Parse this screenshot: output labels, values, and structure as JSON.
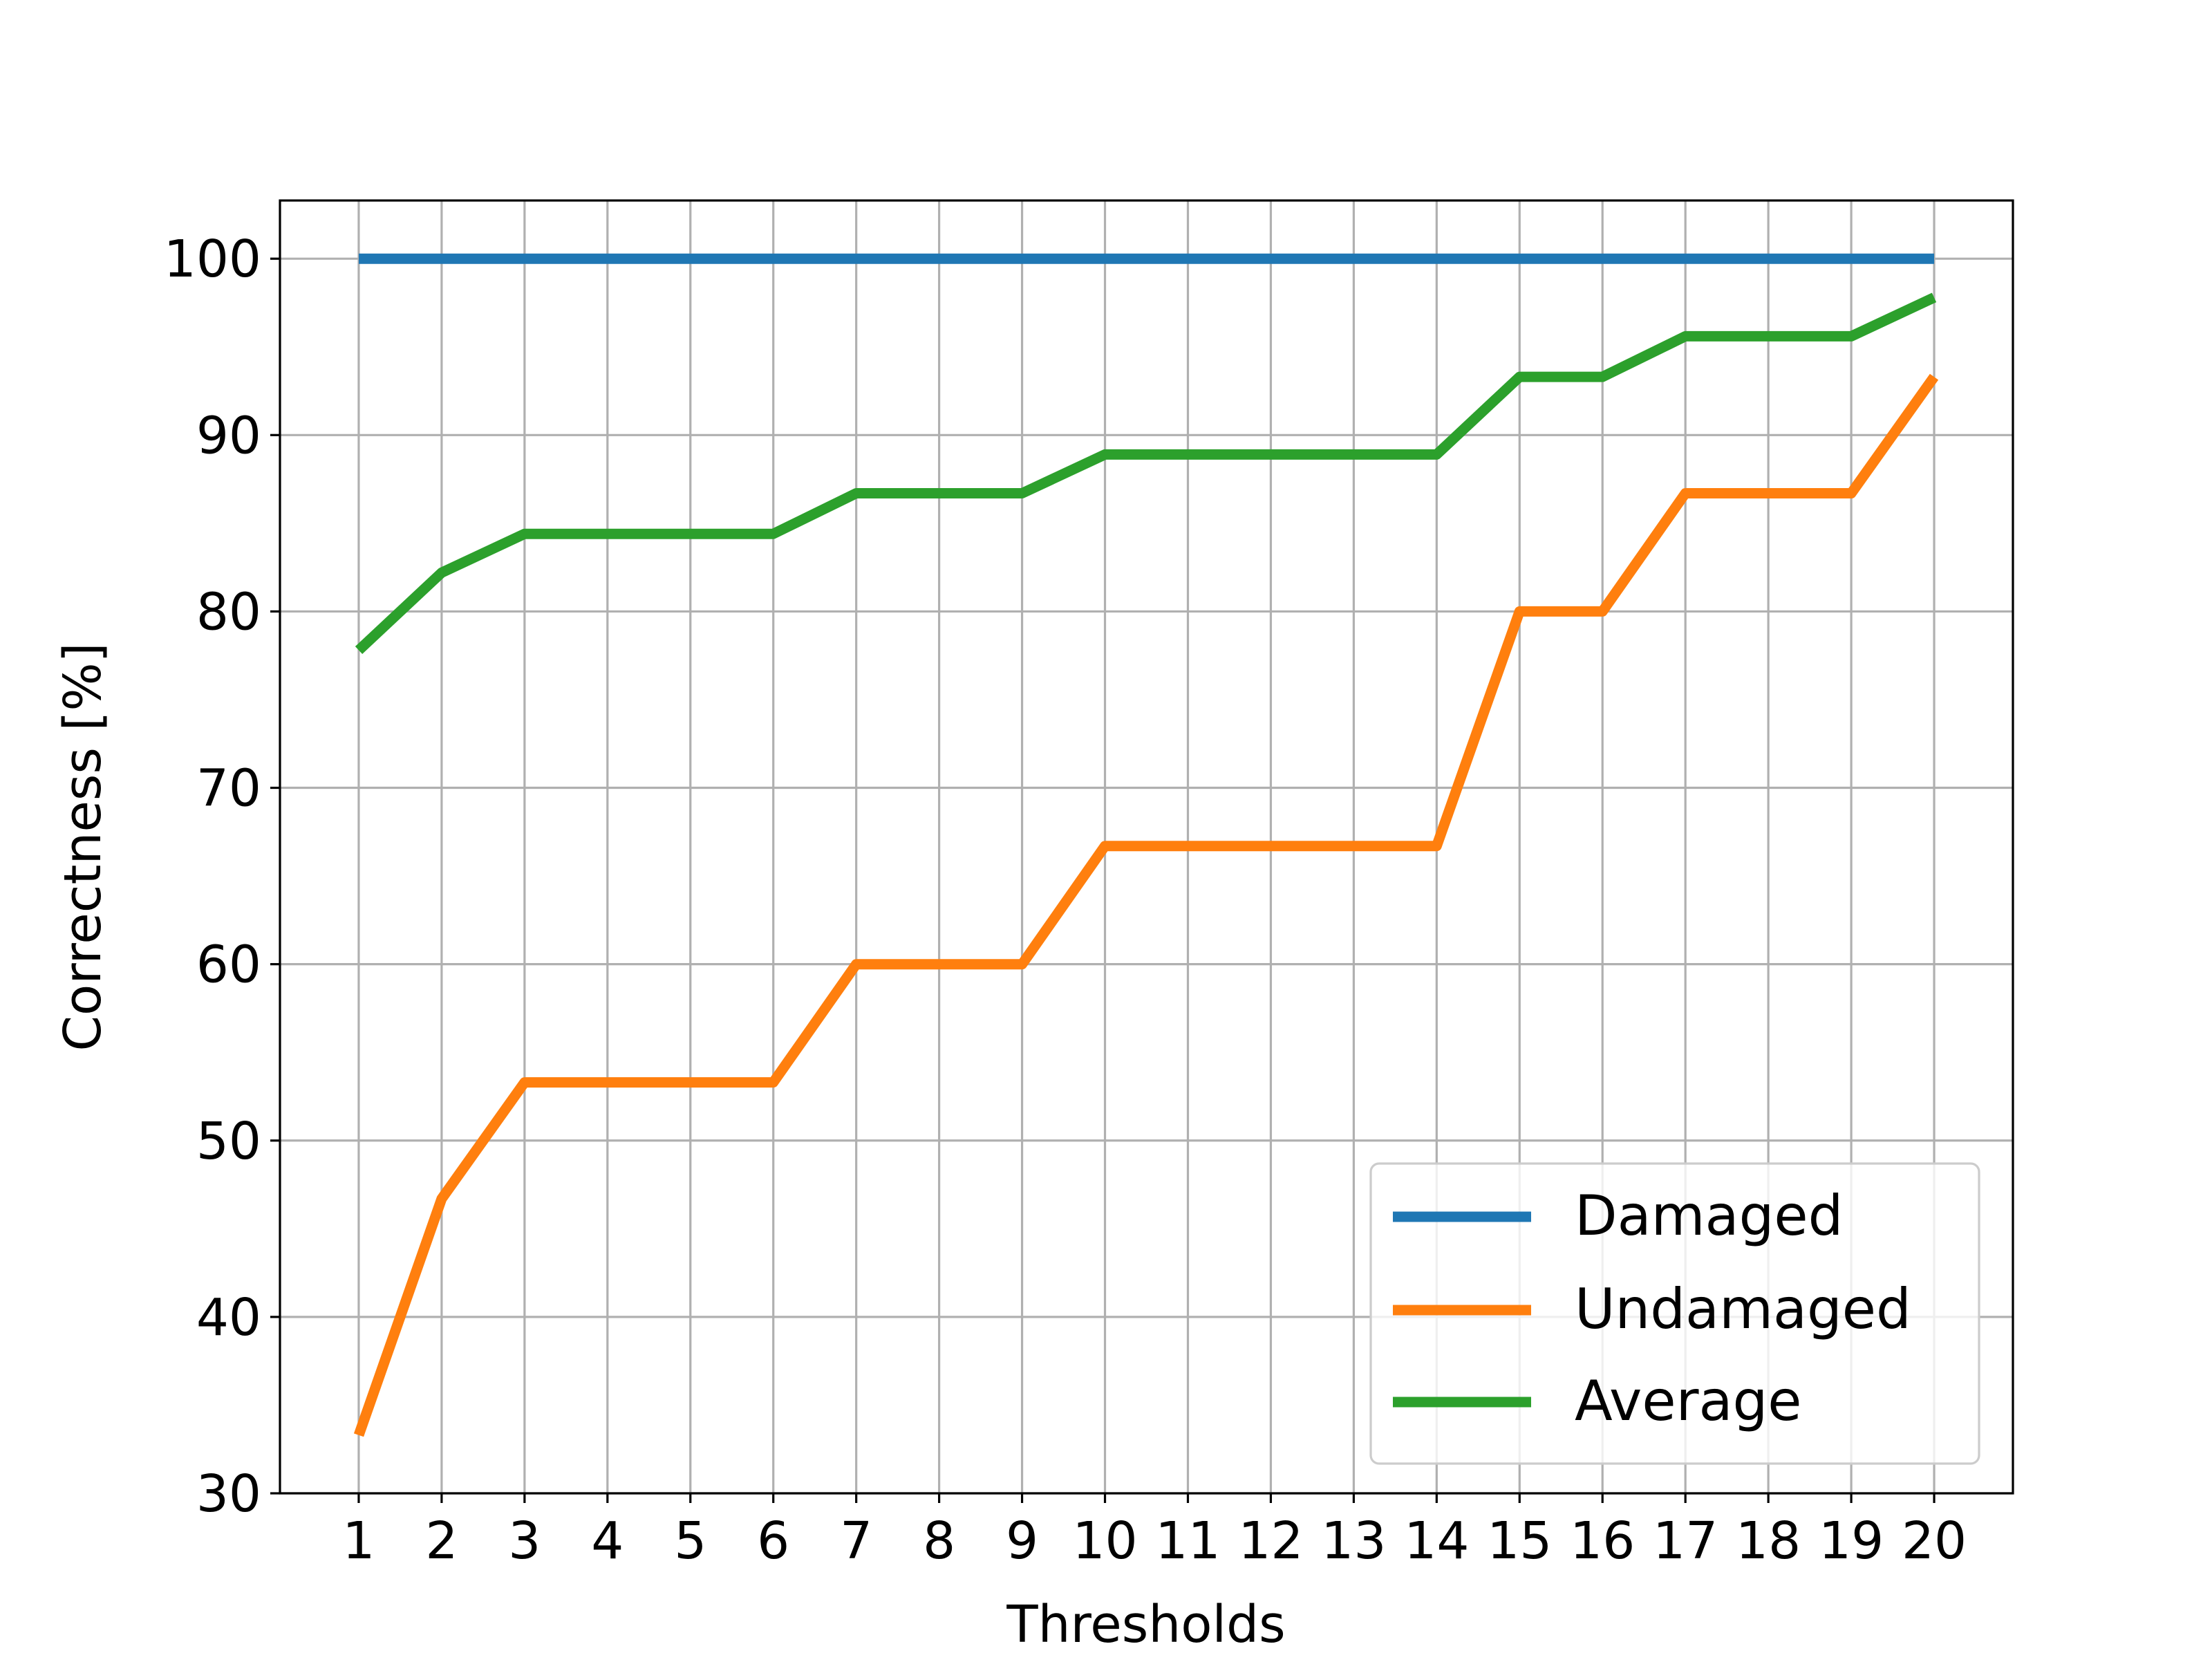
{
  "chart_data": {
    "type": "line",
    "title": "",
    "xlabel": "Thresholds",
    "ylabel": "Correctness [%]",
    "x": [
      1,
      2,
      3,
      4,
      5,
      6,
      7,
      8,
      9,
      10,
      11,
      12,
      13,
      14,
      15,
      16,
      17,
      18,
      19,
      20
    ],
    "xticks": [
      "1",
      "2",
      "3",
      "4",
      "5",
      "6",
      "7",
      "8",
      "9",
      "10",
      "11",
      "12",
      "13",
      "14",
      "15",
      "16",
      "17",
      "18",
      "19",
      "20"
    ],
    "yticks": [
      "30",
      "40",
      "50",
      "60",
      "70",
      "80",
      "90",
      "100"
    ],
    "xlim": [
      0.05,
      20.95
    ],
    "ylim": [
      30,
      103.3
    ],
    "grid": true,
    "legend_position": "lower-right",
    "series": [
      {
        "name": "Damaged",
        "color": "#1f77b4",
        "values": [
          100,
          100,
          100,
          100,
          100,
          100,
          100,
          100,
          100,
          100,
          100,
          100,
          100,
          100,
          100,
          100,
          100,
          100,
          100,
          100
        ]
      },
      {
        "name": "Undamaged",
        "color": "#ff7f0e",
        "values": [
          33.3,
          46.7,
          53.3,
          53.3,
          53.3,
          53.3,
          60.0,
          60.0,
          60.0,
          66.7,
          66.7,
          66.7,
          66.7,
          66.7,
          80.0,
          80.0,
          86.7,
          86.7,
          86.7,
          93.3
        ]
      },
      {
        "name": "Average",
        "color": "#2ca02c",
        "values": [
          77.8,
          82.2,
          84.4,
          84.4,
          84.4,
          84.4,
          86.7,
          86.7,
          86.7,
          88.9,
          88.9,
          88.9,
          88.9,
          88.9,
          93.3,
          93.3,
          95.6,
          95.6,
          95.6,
          97.8
        ]
      }
    ]
  }
}
